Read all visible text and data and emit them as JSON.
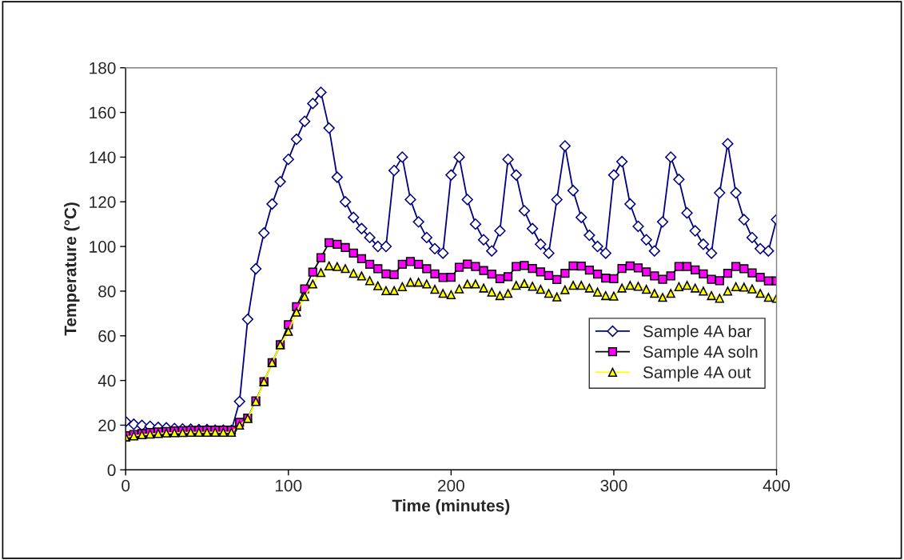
{
  "chart_data": {
    "type": "line",
    "xlabel": "Time (minutes)",
    "ylabel": "Temperature (°C)",
    "x": [
      0,
      5,
      10,
      15,
      20,
      25,
      30,
      35,
      40,
      45,
      50,
      55,
      60,
      65,
      70,
      75,
      80,
      85,
      90,
      95,
      100,
      105,
      110,
      115,
      120,
      125,
      130,
      135,
      140,
      145,
      150,
      155,
      160,
      165,
      170,
      175,
      180,
      185,
      190,
      195,
      200,
      205,
      210,
      215,
      220,
      225,
      230,
      235,
      240,
      245,
      250,
      255,
      260,
      265,
      270,
      275,
      280,
      285,
      290,
      295,
      300,
      305,
      310,
      315,
      320,
      325,
      330,
      335,
      340,
      345,
      350,
      355,
      360,
      365,
      370,
      375,
      380,
      385,
      390,
      395,
      400
    ],
    "series": [
      {
        "name": "Sample 4A bar",
        "color": "#000080",
        "marker": "diamond",
        "values": [
          21.6,
          20.4,
          19.9,
          19.5,
          19,
          18.8,
          18.5,
          18.3,
          18.2,
          18,
          18,
          17.8,
          17.8,
          17.7,
          30.6,
          67.4,
          90,
          106,
          119,
          129,
          139,
          148,
          156,
          164,
          169,
          153,
          131,
          120,
          113,
          108,
          104,
          100,
          100,
          134,
          140,
          121,
          111,
          104,
          99,
          97,
          132,
          140,
          121,
          110,
          103,
          98,
          107,
          139,
          132,
          116,
          108,
          101,
          97,
          121,
          145,
          125,
          113,
          105,
          100,
          97,
          132,
          138,
          119,
          109,
          103,
          98,
          111,
          140,
          130,
          115,
          107,
          101,
          97,
          124,
          146,
          124,
          112,
          104,
          99,
          98,
          112
        ]
      },
      {
        "name": "Sample 4A soln",
        "color": "#ff00ff",
        "marker": "square",
        "values": [
          15.3,
          15.8,
          16.3,
          16.7,
          17,
          17.2,
          17.4,
          17.5,
          17.6,
          17.7,
          17.8,
          17.8,
          17.8,
          17.8,
          21.3,
          23.2,
          30.9,
          39.5,
          48,
          56,
          65,
          73,
          81,
          88.5,
          95,
          101.7,
          101,
          99.5,
          97,
          94.5,
          92,
          90,
          87.7,
          87.4,
          92,
          93.3,
          92,
          90,
          87.7,
          86.1,
          86.2,
          90.7,
          92.1,
          91,
          89.2,
          87.6,
          85.6,
          86.5,
          91,
          91.5,
          90.1,
          88.6,
          87,
          85.2,
          88,
          91.3,
          91.2,
          89.4,
          87.6,
          85.8,
          85.6,
          90.1,
          91.3,
          90.4,
          88.6,
          86.8,
          85.3,
          86.8,
          91,
          91,
          89.5,
          87.7,
          85.3,
          84.7,
          88,
          91,
          90,
          88.2,
          86.2,
          84.6,
          84.6
        ]
      },
      {
        "name": "Sample 4A out",
        "color": "#ffff00",
        "marker": "triangle",
        "values": [
          14.7,
          15.2,
          15.7,
          16,
          16.3,
          16.5,
          16.6,
          16.7,
          16.8,
          16.8,
          16.8,
          16.8,
          16.8,
          16.8,
          20,
          23,
          30.6,
          39.5,
          48,
          56,
          62,
          70.6,
          77.6,
          83.2,
          88.3,
          91.3,
          91,
          90.1,
          88,
          86.8,
          84.7,
          82.4,
          80.2,
          80.2,
          82,
          84,
          84,
          83.2,
          80.8,
          79,
          78.4,
          81,
          83.2,
          83.2,
          81.4,
          79.6,
          78,
          79,
          82.6,
          83.4,
          82.2,
          80.8,
          79,
          77.4,
          80.6,
          82.6,
          82.6,
          81.4,
          79.6,
          78,
          77.8,
          81.4,
          82.6,
          82.2,
          80.8,
          79,
          77.2,
          79,
          82,
          82.6,
          81.4,
          80,
          78,
          76.8,
          80,
          82,
          81.8,
          81,
          79,
          77.2,
          76.8
        ]
      }
    ],
    "xlim": [
      0,
      400
    ],
    "xticks": [
      0,
      100,
      200,
      300,
      400
    ],
    "ylim": [
      0,
      180
    ],
    "yticks": [
      0,
      20,
      40,
      60,
      80,
      100,
      120,
      140,
      160,
      180
    ],
    "grid": false,
    "legend": "right"
  }
}
